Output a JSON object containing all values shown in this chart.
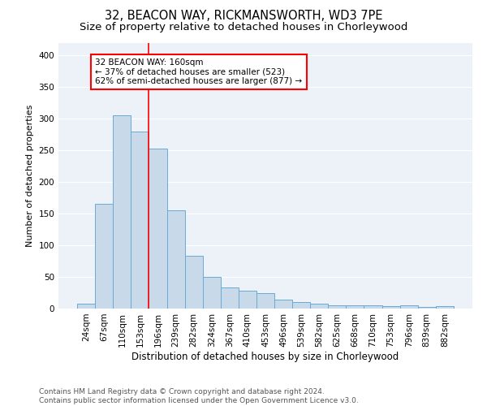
{
  "title": "32, BEACON WAY, RICKMANSWORTH, WD3 7PE",
  "subtitle": "Size of property relative to detached houses in Chorleywood",
  "xlabel": "Distribution of detached houses by size in Chorleywood",
  "ylabel": "Number of detached properties",
  "categories": [
    "24sqm",
    "67sqm",
    "110sqm",
    "153sqm",
    "196sqm",
    "239sqm",
    "282sqm",
    "324sqm",
    "367sqm",
    "410sqm",
    "453sqm",
    "496sqm",
    "539sqm",
    "582sqm",
    "625sqm",
    "668sqm",
    "710sqm",
    "753sqm",
    "796sqm",
    "839sqm",
    "882sqm"
  ],
  "values": [
    8,
    165,
    305,
    280,
    252,
    155,
    84,
    50,
    33,
    28,
    25,
    14,
    10,
    8,
    5,
    5,
    5,
    4,
    5,
    3,
    4
  ],
  "bar_color": "#c8d9ea",
  "bar_edge_color": "#6aaad4",
  "red_line_x": 3.5,
  "annotation_text": "32 BEACON WAY: 160sqm\n← 37% of detached houses are smaller (523)\n62% of semi-detached houses are larger (877) →",
  "annotation_box_color": "white",
  "annotation_box_edge": "red",
  "ylim": [
    0,
    420
  ],
  "yticks": [
    0,
    50,
    100,
    150,
    200,
    250,
    300,
    350,
    400
  ],
  "footer_line1": "Contains HM Land Registry data © Crown copyright and database right 2024.",
  "footer_line2": "Contains public sector information licensed under the Open Government Licence v3.0.",
  "bg_color": "#edf2f8",
  "grid_color": "white",
  "title_fontsize": 10.5,
  "subtitle_fontsize": 9.5,
  "xlabel_fontsize": 8.5,
  "ylabel_fontsize": 8,
  "tick_fontsize": 7.5,
  "footer_fontsize": 6.5,
  "annot_fontsize": 7.5
}
